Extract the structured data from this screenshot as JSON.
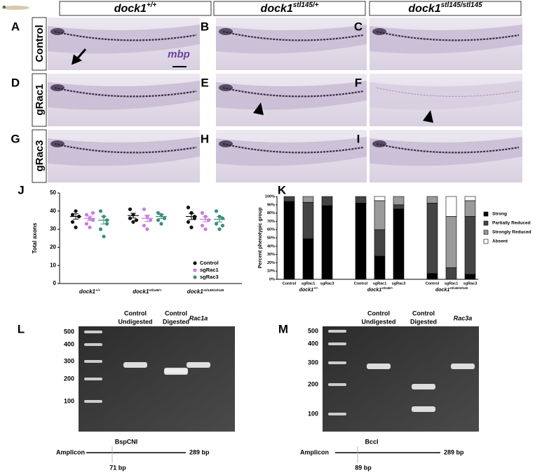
{
  "columns": [
    {
      "gene": "dock1",
      "genotype": "+/+"
    },
    {
      "gene": "dock1",
      "genotype": "stl145/+"
    },
    {
      "gene": "dock1",
      "genotype": "stl145/stl145"
    }
  ],
  "rows": [
    "Control",
    "gRac1",
    "gRac3"
  ],
  "panel_letters": [
    "A",
    "B",
    "C",
    "D",
    "E",
    "F",
    "G",
    "H",
    "I"
  ],
  "marker": "mbp",
  "chart_data": [
    {
      "type": "dotplot",
      "letter": "J",
      "ylabel": "Total axons",
      "ylim": [
        0,
        50
      ],
      "yticks": [
        0,
        10,
        20,
        30,
        40,
        50
      ],
      "categories": [
        {
          "gene": "dock1",
          "genotype": "+/+"
        },
        {
          "gene": "dock1",
          "genotype": "stl145/+"
        },
        {
          "gene": "dock1",
          "genotype": "stl145/stl145"
        }
      ],
      "legend": "lower right",
      "series": [
        {
          "name": "Control",
          "color": "#111111",
          "values": [
            [
              38,
              40,
              37,
              34,
              31,
              37
            ],
            [
              41,
              38,
              35,
              36,
              34
            ],
            [
              42,
              39,
              37,
              34,
              31,
              36
            ]
          ],
          "means": [
            37,
            37.5,
            37
          ],
          "errors": [
            1.5,
            1.3,
            1.7
          ]
        },
        {
          "name": "sgRac1",
          "color": "#c77ee0",
          "values": [
            [
              38,
              36,
              35,
              33,
              31,
              39
            ],
            [
              41,
              37,
              35,
              32,
              30
            ],
            [
              39,
              37,
              35,
              32,
              30
            ]
          ],
          "means": [
            36,
            36,
            35.5
          ],
          "errors": [
            1.2,
            1.8,
            1.4
          ]
        },
        {
          "name": "sgRac3",
          "color": "#3a8f7f",
          "values": [
            [
              40,
              37,
              35,
              30,
              26,
              33
            ],
            [
              39,
              38,
              36,
              35,
              33
            ],
            [
              40,
              37,
              36,
              33,
              30,
              32
            ]
          ],
          "means": [
            35,
            37,
            35.5
          ],
          "errors": [
            2.1,
            1.1,
            1.5
          ]
        }
      ]
    },
    {
      "type": "stacked-bar",
      "letter": "K",
      "ylabel": "Percent phenotypic group",
      "ylim": [
        0,
        100
      ],
      "yticks": [
        {
          "value": 0,
          "label": "0%"
        },
        {
          "value": 10,
          "label": "10%"
        },
        {
          "value": 20,
          "label": "20%"
        },
        {
          "value": 30,
          "label": "30%"
        },
        {
          "value": 40,
          "label": "40%"
        },
        {
          "value": 50,
          "label": "50%"
        },
        {
          "value": 60,
          "label": "60%"
        },
        {
          "value": 70,
          "label": "70%"
        },
        {
          "value": 80,
          "label": "80%"
        },
        {
          "value": 90,
          "label": "90%"
        },
        {
          "value": 100,
          "label": "100%"
        }
      ],
      "categories": [
        "Control",
        "sgRac1",
        "sgRac3",
        "Control",
        "sgRac1",
        "sgRac3",
        "Control",
        "sgRac1",
        "sgRac3"
      ],
      "groups": [
        {
          "gene": "dock1",
          "genotype": "+/+"
        },
        {
          "gene": "dock1",
          "genotype": "stl145/+"
        },
        {
          "gene": "dock1",
          "genotype": "stl145/stl145"
        }
      ],
      "legend": "right",
      "series": [
        {
          "name": "Strong",
          "color": "#000000",
          "values": [
            94,
            49,
            89,
            92,
            28,
            85,
            7,
            0,
            6
          ]
        },
        {
          "name": "Partially Reduced",
          "color": "#444444",
          "values": [
            6,
            44,
            11,
            8,
            32,
            5,
            85,
            14,
            70
          ]
        },
        {
          "name": "Strongly Reduced",
          "color": "#9a9a9a",
          "values": [
            0,
            7,
            0,
            0,
            35,
            10,
            8,
            62,
            19
          ]
        },
        {
          "name": "Absent",
          "color": "#ffffff",
          "values": [
            0,
            0,
            0,
            0,
            5,
            0,
            0,
            24,
            5
          ]
        }
      ]
    }
  ],
  "gels": [
    {
      "letter": "L",
      "ladder": [
        "500",
        "400",
        "300",
        "200",
        "100"
      ],
      "lanes": [
        [
          "Control",
          "Undigested"
        ],
        [
          "Control",
          "Digested"
        ],
        [
          "Rac1a"
        ]
      ],
      "enzyme": "BspCNI",
      "amplicon": "Amplicon",
      "length": "289 bp",
      "cut": "71 bp"
    },
    {
      "letter": "M",
      "ladder": [
        "500",
        "400",
        "300",
        "200",
        "100"
      ],
      "lanes": [
        [
          "Control",
          "Undigested"
        ],
        [
          "Control",
          "Digested"
        ],
        [
          "Rac3a"
        ]
      ],
      "enzyme": "BccI",
      "amplicon": "Amplicon",
      "length": "289 bp",
      "cut": "89 bp"
    }
  ]
}
